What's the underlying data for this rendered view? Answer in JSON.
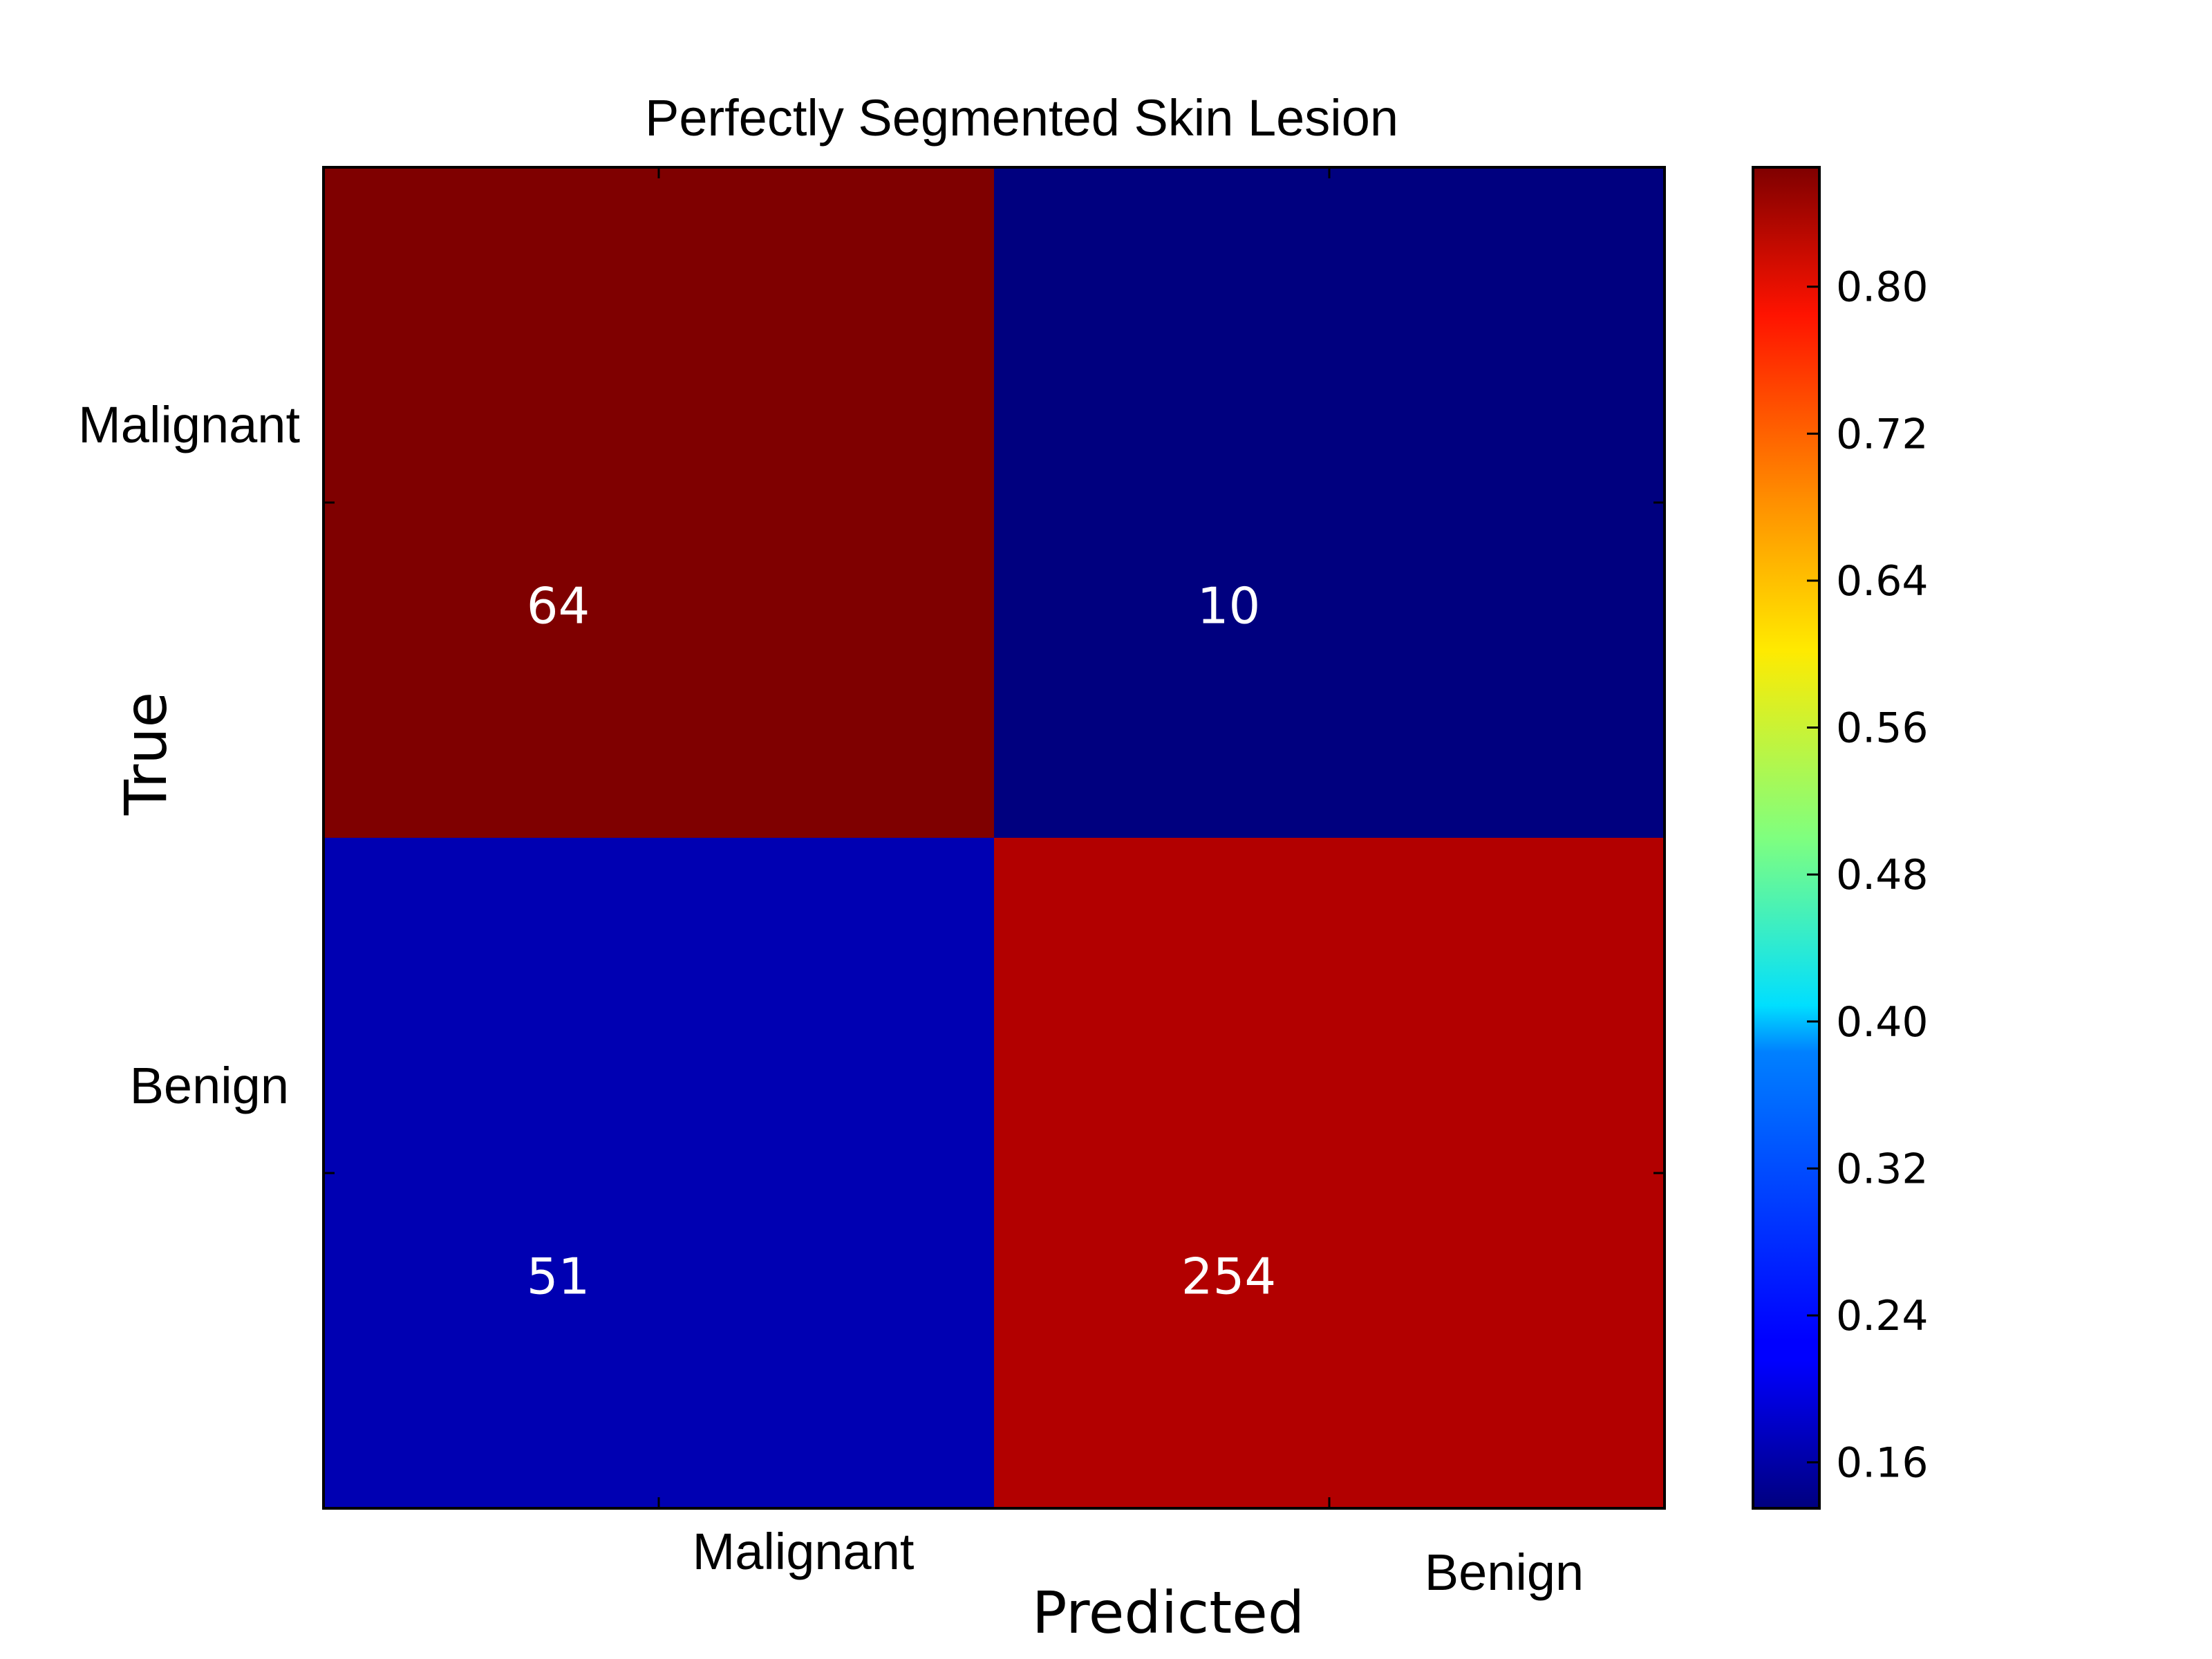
{
  "chart_data": {
    "type": "heatmap",
    "title": "Perfectly Segmented Skin Lesion",
    "xlabel": "Predicted",
    "ylabel": "True",
    "x_categories": [
      "Malignant",
      "Benign"
    ],
    "y_categories": [
      "Malignant",
      "Benign"
    ],
    "cells": [
      {
        "row": 0,
        "col": 0,
        "label": "64",
        "value": 0.865,
        "color": "#7f0000"
      },
      {
        "row": 0,
        "col": 1,
        "label": "10",
        "value": 0.135,
        "color": "#00007f"
      },
      {
        "row": 1,
        "col": 0,
        "label": "51",
        "value": 0.167,
        "color": "#0000b2"
      },
      {
        "row": 1,
        "col": 1,
        "label": "254",
        "value": 0.833,
        "color": "#b20000"
      }
    ],
    "colorbar": {
      "colormap": "jet",
      "range": [
        0.135,
        0.865
      ],
      "ticks": [
        "0.16",
        "0.24",
        "0.32",
        "0.40",
        "0.48",
        "0.56",
        "0.64",
        "0.72",
        "0.80"
      ]
    },
    "grid": false,
    "legend": "none"
  }
}
